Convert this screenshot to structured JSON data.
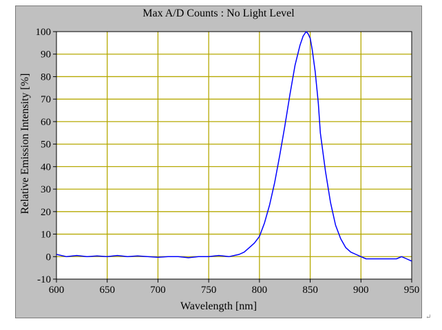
{
  "window": {
    "title": "Max A/D Counts : No Light Level"
  },
  "corner_mark": "↵",
  "chart_data": {
    "type": "line",
    "title": "Max A/D Counts : No Light Level",
    "xlabel": "Wavelength [nm]",
    "ylabel": "Relative Emission Intensity [%]",
    "xlim": [
      600,
      950
    ],
    "ylim": [
      -10,
      100
    ],
    "xticks": [
      600,
      650,
      700,
      750,
      800,
      850,
      900,
      950
    ],
    "yticks": [
      -10,
      0,
      10,
      20,
      30,
      40,
      50,
      60,
      70,
      80,
      90,
      100
    ],
    "grid": true,
    "colors": {
      "grid": "#b5a800",
      "line": "#0000ff",
      "plot_bg": "#ffffff",
      "panel_bg": "#c0c0c0"
    },
    "series": [
      {
        "x": [
          600,
          610,
          620,
          630,
          640,
          650,
          660,
          670,
          680,
          690,
          700,
          710,
          720,
          730,
          740,
          750,
          760,
          770,
          780,
          785,
          790,
          795,
          800,
          805,
          810,
          815,
          820,
          825,
          830,
          835,
          840,
          843,
          846,
          848,
          850,
          852,
          855,
          858,
          860,
          865,
          870,
          875,
          880,
          885,
          890,
          895,
          900,
          905,
          910,
          915,
          920,
          925,
          930,
          935,
          940,
          945,
          950
        ],
        "y": [
          1,
          0,
          0.5,
          0,
          0.3,
          0,
          0.5,
          0,
          0.3,
          0,
          -0.3,
          0,
          0,
          -0.5,
          0,
          0,
          0.5,
          0,
          1,
          2,
          4,
          6,
          9,
          15,
          23,
          33,
          45,
          58,
          72,
          85,
          94,
          98,
          100,
          99,
          97,
          92,
          82,
          68,
          55,
          38,
          24,
          14,
          8,
          4,
          2,
          1,
          0,
          -1,
          -1,
          -1,
          -1,
          -1,
          -1,
          -1,
          0,
          -1,
          -2
        ]
      }
    ]
  }
}
